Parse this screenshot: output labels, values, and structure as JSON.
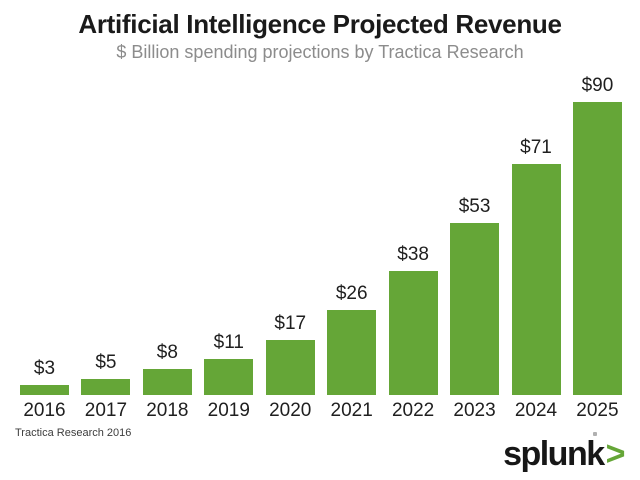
{
  "chart_data": {
    "type": "bar",
    "title": "Artificial Intelligence Projected Revenue",
    "subtitle": "$ Billion spending projections by Tractica Research",
    "categories": [
      "2016",
      "2017",
      "2018",
      "2019",
      "2020",
      "2021",
      "2022",
      "2023",
      "2024",
      "2025"
    ],
    "values": [
      3,
      5,
      8,
      11,
      17,
      26,
      38,
      53,
      71,
      90
    ],
    "value_prefix": "$",
    "data_labels": [
      "$3",
      "$5",
      "$8",
      "$11",
      "$17",
      "$26",
      "$38",
      "$53",
      "$71",
      "$90"
    ],
    "xlabel": "",
    "ylabel": "",
    "ylim": [
      0,
      90
    ],
    "grid": false,
    "legend": "none",
    "bar_color": "#65a637",
    "label_color": "#1f1f1f"
  },
  "footer": {
    "source_note": "Tractica Research 2016",
    "logo": {
      "text": "splunk",
      "chevron": ">",
      "chevron_color": "#65a637",
      "spark_color": "#b0b0b0"
    }
  }
}
